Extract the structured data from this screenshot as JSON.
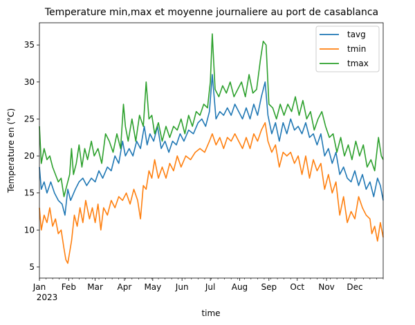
{
  "chart_data": {
    "type": "line",
    "title": "Temperature min,max et moyenne journaliere au port de casablanca",
    "xlabel": "time",
    "ylabel": "Temperature en (°C)",
    "ylim": [
      3.5,
      38
    ],
    "yticks": [
      5,
      10,
      15,
      20,
      25,
      30,
      35
    ],
    "xticks": [
      {
        "label": "Jan",
        "sub": "2023",
        "day": 0
      },
      {
        "label": "Feb",
        "day": 31
      },
      {
        "label": "Mar",
        "day": 59
      },
      {
        "label": "Apr",
        "day": 90
      },
      {
        "label": "May",
        "day": 120
      },
      {
        "label": "Jun",
        "day": 151
      },
      {
        "label": "Jul",
        "day": 181
      },
      {
        "label": "Aug",
        "day": 212
      },
      {
        "label": "Sep",
        "day": 243
      },
      {
        "label": "Oct",
        "day": 273
      },
      {
        "label": "Nov",
        "day": 304
      },
      {
        "label": "Dec",
        "day": 334
      }
    ],
    "legend_position": "top-right",
    "series": [
      {
        "name": "tavg",
        "color": "#1f77b4",
        "keypoints": [
          [
            0,
            18.5
          ],
          [
            2,
            15.5
          ],
          [
            5,
            16.5
          ],
          [
            8,
            15
          ],
          [
            12,
            16.5
          ],
          [
            16,
            15
          ],
          [
            20,
            14
          ],
          [
            24,
            13.5
          ],
          [
            27,
            12
          ],
          [
            30,
            15.5
          ],
          [
            33,
            14
          ],
          [
            38,
            15.5
          ],
          [
            42,
            16.5
          ],
          [
            46,
            17
          ],
          [
            50,
            16
          ],
          [
            55,
            17
          ],
          [
            59,
            16.5
          ],
          [
            63,
            18
          ],
          [
            67,
            17
          ],
          [
            72,
            18.5
          ],
          [
            76,
            18
          ],
          [
            80,
            20
          ],
          [
            84,
            19
          ],
          [
            88,
            22
          ],
          [
            91,
            20
          ],
          [
            95,
            21
          ],
          [
            99,
            20
          ],
          [
            103,
            22
          ],
          [
            107,
            21
          ],
          [
            111,
            24
          ],
          [
            114,
            21.5
          ],
          [
            117,
            23
          ],
          [
            121,
            22
          ],
          [
            125,
            24
          ],
          [
            129,
            21
          ],
          [
            133,
            22
          ],
          [
            137,
            20.5
          ],
          [
            141,
            22
          ],
          [
            145,
            21.5
          ],
          [
            149,
            23
          ],
          [
            153,
            22
          ],
          [
            158,
            23.5
          ],
          [
            163,
            23
          ],
          [
            168,
            24.5
          ],
          [
            172,
            25
          ],
          [
            176,
            24
          ],
          [
            180,
            26
          ],
          [
            183,
            31
          ],
          [
            187,
            25
          ],
          [
            191,
            26
          ],
          [
            195,
            25.5
          ],
          [
            199,
            26.5
          ],
          [
            203,
            25.5
          ],
          [
            207,
            27
          ],
          [
            211,
            26
          ],
          [
            215,
            25
          ],
          [
            219,
            26.5
          ],
          [
            223,
            25
          ],
          [
            227,
            27
          ],
          [
            231,
            25.5
          ],
          [
            235,
            28
          ],
          [
            239,
            30
          ],
          [
            242,
            25.5
          ],
          [
            246,
            23
          ],
          [
            250,
            24.5
          ],
          [
            254,
            22
          ],
          [
            258,
            24.5
          ],
          [
            262,
            23
          ],
          [
            266,
            25
          ],
          [
            270,
            23.5
          ],
          [
            274,
            24
          ],
          [
            278,
            23
          ],
          [
            282,
            24.5
          ],
          [
            286,
            22.5
          ],
          [
            290,
            23
          ],
          [
            294,
            21.5
          ],
          [
            298,
            23
          ],
          [
            302,
            20
          ],
          [
            306,
            21
          ],
          [
            310,
            19
          ],
          [
            314,
            20.5
          ],
          [
            318,
            17.5
          ],
          [
            322,
            18.5
          ],
          [
            326,
            17
          ],
          [
            330,
            16.5
          ],
          [
            334,
            18
          ],
          [
            338,
            16
          ],
          [
            342,
            17.5
          ],
          [
            346,
            15.5
          ],
          [
            350,
            16.5
          ],
          [
            354,
            14.5
          ],
          [
            358,
            17
          ],
          [
            361,
            16
          ],
          [
            364,
            14
          ]
        ]
      },
      {
        "name": "tmin",
        "color": "#ff7f0e",
        "keypoints": [
          [
            0,
            13
          ],
          [
            2,
            10
          ],
          [
            5,
            12
          ],
          [
            8,
            11
          ],
          [
            11,
            13
          ],
          [
            14,
            10.5
          ],
          [
            17,
            11.5
          ],
          [
            20,
            9.5
          ],
          [
            23,
            10
          ],
          [
            26,
            7.5
          ],
          [
            28,
            6
          ],
          [
            30,
            5.5
          ],
          [
            32,
            7
          ],
          [
            34,
            8.5
          ],
          [
            37,
            12
          ],
          [
            40,
            10.5
          ],
          [
            43,
            13
          ],
          [
            46,
            11
          ],
          [
            49,
            14
          ],
          [
            53,
            11.5
          ],
          [
            56,
            13
          ],
          [
            59,
            11
          ],
          [
            62,
            13.5
          ],
          [
            65,
            10
          ],
          [
            68,
            13
          ],
          [
            72,
            12
          ],
          [
            76,
            14
          ],
          [
            80,
            13
          ],
          [
            84,
            14.5
          ],
          [
            88,
            14
          ],
          [
            92,
            15
          ],
          [
            96,
            13.5
          ],
          [
            100,
            15.5
          ],
          [
            104,
            14
          ],
          [
            107,
            11.5
          ],
          [
            110,
            16
          ],
          [
            113,
            15.5
          ],
          [
            116,
            18
          ],
          [
            119,
            17
          ],
          [
            122,
            19.5
          ],
          [
            126,
            17
          ],
          [
            130,
            18.5
          ],
          [
            134,
            17
          ],
          [
            138,
            19
          ],
          [
            142,
            18
          ],
          [
            146,
            20
          ],
          [
            150,
            18.5
          ],
          [
            155,
            20
          ],
          [
            160,
            19.5
          ],
          [
            165,
            20.5
          ],
          [
            170,
            21
          ],
          [
            175,
            20.5
          ],
          [
            180,
            22
          ],
          [
            183,
            23
          ],
          [
            187,
            21.5
          ],
          [
            191,
            22.5
          ],
          [
            195,
            21
          ],
          [
            199,
            22.5
          ],
          [
            203,
            22
          ],
          [
            207,
            23
          ],
          [
            211,
            22
          ],
          [
            215,
            21
          ],
          [
            219,
            22.5
          ],
          [
            223,
            21
          ],
          [
            227,
            23
          ],
          [
            231,
            22
          ],
          [
            235,
            23.5
          ],
          [
            239,
            24.5
          ],
          [
            242,
            22
          ],
          [
            246,
            20.5
          ],
          [
            250,
            21.5
          ],
          [
            254,
            18.5
          ],
          [
            258,
            20.5
          ],
          [
            262,
            20
          ],
          [
            266,
            20.5
          ],
          [
            270,
            19
          ],
          [
            274,
            20
          ],
          [
            278,
            17.5
          ],
          [
            282,
            20
          ],
          [
            286,
            17
          ],
          [
            290,
            19.5
          ],
          [
            294,
            18
          ],
          [
            298,
            19
          ],
          [
            302,
            15.5
          ],
          [
            306,
            17.5
          ],
          [
            310,
            15
          ],
          [
            314,
            16.5
          ],
          [
            318,
            12
          ],
          [
            322,
            14.5
          ],
          [
            326,
            11
          ],
          [
            330,
            12.5
          ],
          [
            334,
            11.5
          ],
          [
            338,
            14.5
          ],
          [
            342,
            13
          ],
          [
            346,
            12
          ],
          [
            350,
            11.5
          ],
          [
            352,
            9.5
          ],
          [
            355,
            10.5
          ],
          [
            358,
            8.5
          ],
          [
            361,
            11
          ],
          [
            364,
            9
          ]
        ]
      },
      {
        "name": "tmax",
        "color": "#2ca02c",
        "keypoints": [
          [
            0,
            24
          ],
          [
            2,
            19
          ],
          [
            5,
            21
          ],
          [
            8,
            19.5
          ],
          [
            11,
            20
          ],
          [
            14,
            18.5
          ],
          [
            17,
            17.5
          ],
          [
            20,
            16.5
          ],
          [
            23,
            17
          ],
          [
            26,
            14.5
          ],
          [
            29,
            16
          ],
          [
            32,
            17.5
          ],
          [
            34,
            21
          ],
          [
            36,
            17.5
          ],
          [
            39,
            19
          ],
          [
            42,
            21.5
          ],
          [
            45,
            18.5
          ],
          [
            48,
            21
          ],
          [
            51,
            19.5
          ],
          [
            55,
            22
          ],
          [
            58,
            20
          ],
          [
            62,
            21
          ],
          [
            66,
            19
          ],
          [
            70,
            23
          ],
          [
            74,
            22
          ],
          [
            78,
            20.5
          ],
          [
            82,
            23
          ],
          [
            86,
            21
          ],
          [
            89,
            27
          ],
          [
            91,
            24
          ],
          [
            94,
            22
          ],
          [
            98,
            25
          ],
          [
            102,
            22
          ],
          [
            106,
            25.5
          ],
          [
            110,
            24
          ],
          [
            113,
            30
          ],
          [
            116,
            25
          ],
          [
            119,
            25.5
          ],
          [
            122,
            23
          ],
          [
            126,
            24.5
          ],
          [
            130,
            22
          ],
          [
            134,
            24
          ],
          [
            138,
            22.5
          ],
          [
            142,
            24
          ],
          [
            146,
            23.5
          ],
          [
            150,
            25
          ],
          [
            154,
            23
          ],
          [
            158,
            25.5
          ],
          [
            162,
            24
          ],
          [
            166,
            26
          ],
          [
            170,
            25.5
          ],
          [
            174,
            27
          ],
          [
            178,
            26.5
          ],
          [
            181,
            30
          ],
          [
            183,
            36.5
          ],
          [
            186,
            29
          ],
          [
            190,
            28
          ],
          [
            194,
            29.5
          ],
          [
            198,
            28.5
          ],
          [
            202,
            30
          ],
          [
            206,
            28
          ],
          [
            210,
            29
          ],
          [
            214,
            30
          ],
          [
            218,
            28
          ],
          [
            222,
            31
          ],
          [
            226,
            28.5
          ],
          [
            230,
            29
          ],
          [
            234,
            33
          ],
          [
            237,
            35.5
          ],
          [
            240,
            35
          ],
          [
            243,
            27
          ],
          [
            247,
            26.5
          ],
          [
            251,
            25
          ],
          [
            255,
            27
          ],
          [
            259,
            25.5
          ],
          [
            263,
            27
          ],
          [
            267,
            26
          ],
          [
            271,
            28
          ],
          [
            275,
            25.5
          ],
          [
            279,
            27.5
          ],
          [
            283,
            25
          ],
          [
            287,
            26
          ],
          [
            291,
            23.5
          ],
          [
            295,
            25
          ],
          [
            299,
            26
          ],
          [
            303,
            24
          ],
          [
            307,
            22.5
          ],
          [
            311,
            23
          ],
          [
            315,
            20.5
          ],
          [
            319,
            22.5
          ],
          [
            323,
            20
          ],
          [
            327,
            21.5
          ],
          [
            331,
            19.5
          ],
          [
            335,
            22
          ],
          [
            339,
            20
          ],
          [
            343,
            21.5
          ],
          [
            347,
            18.5
          ],
          [
            351,
            19.5
          ],
          [
            355,
            18
          ],
          [
            359,
            22.5
          ],
          [
            362,
            20
          ],
          [
            364,
            19.5
          ]
        ]
      }
    ]
  }
}
